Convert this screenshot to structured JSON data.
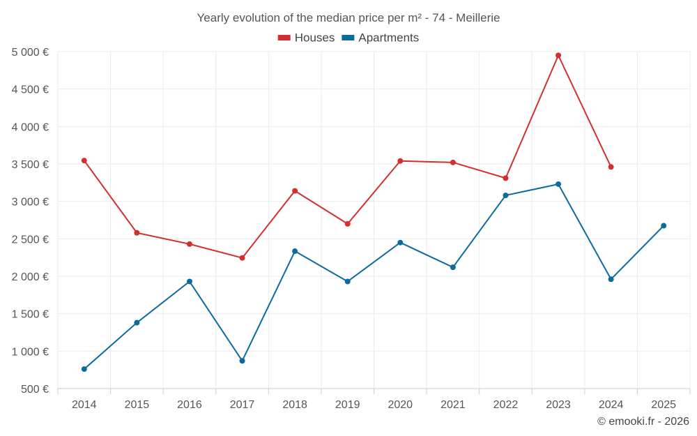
{
  "chart_data": {
    "type": "line",
    "title": "Yearly evolution of the median price per m² - 74 - Meillerie",
    "xlabel": "",
    "ylabel": "",
    "categories": [
      "2014",
      "2015",
      "2016",
      "2017",
      "2018",
      "2019",
      "2020",
      "2021",
      "2022",
      "2023",
      "2024",
      "2025"
    ],
    "ylim": [
      500,
      5000
    ],
    "yticks": [
      500,
      1000,
      1500,
      2000,
      2500,
      3000,
      3500,
      4000,
      4500,
      5000
    ],
    "ytick_labels": [
      "500 €",
      "1 000 €",
      "1 500 €",
      "2 000 €",
      "2 500 €",
      "3 000 €",
      "3 500 €",
      "4 000 €",
      "4 500 €",
      "5 000 €"
    ],
    "grid": true,
    "legend_position": "top-center",
    "series": [
      {
        "name": "Houses",
        "color": "#d32f2f",
        "values": [
          3545,
          2580,
          2430,
          2245,
          3140,
          2700,
          3540,
          3520,
          3310,
          4950,
          3460,
          null
        ]
      },
      {
        "name": "Apartments",
        "color": "#0d6a9c",
        "values": [
          760,
          1380,
          1930,
          870,
          2335,
          1930,
          2450,
          2120,
          3080,
          3230,
          1960,
          2675
        ]
      }
    ]
  },
  "credit": "© emooki.fr - 2026"
}
